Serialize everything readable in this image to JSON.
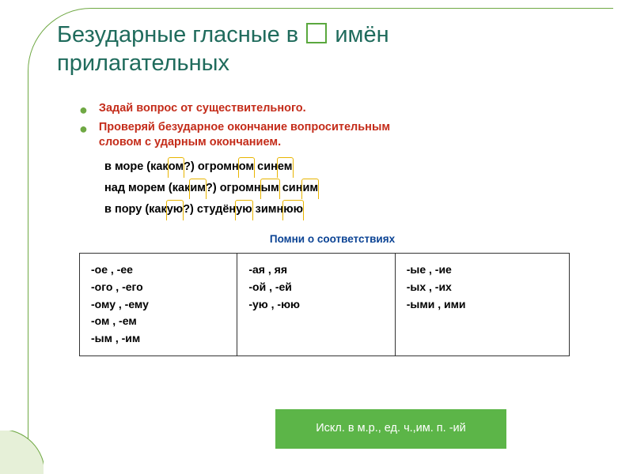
{
  "title": {
    "part1": "Безударные гласные в",
    "part2": "имён",
    "part3": "прилагательных"
  },
  "bullets": [
    {
      "text": "Задай вопрос от существительного.",
      "color": "#c42c1a"
    },
    {
      "text_a": "Проверяй безударное окончание вопросительным",
      "text_b": "словом с ударным окончанием.",
      "color": "#c42c1a"
    }
  ],
  "examples": [
    {
      "pre": "в море (как",
      "h1": "ом",
      "mid1": "?) огромн",
      "h2": "ом",
      "mid2": " син",
      "h3": "ем",
      "post": ""
    },
    {
      "pre": "над морем (как",
      "h1": "им",
      "mid1": "?) огромн",
      "h2": "ым",
      "mid2": " син",
      "h3": "им",
      "post": ""
    },
    {
      "pre": "в пору (как",
      "h1": "ую",
      "mid1": "?) студён",
      "h2": "ую",
      "mid2": " зимн",
      "h3": "юю",
      "post": ""
    }
  ],
  "subheading": "Помни о соответствиях",
  "table": {
    "col1": [
      "-ое ,  -ее",
      "-ого , -его",
      "-ому , -ему",
      "-ом , -ем",
      "-ым , -им"
    ],
    "col2": [
      "-ая , яя",
      "-ой , -ей",
      "-ую , -юю"
    ],
    "col3": [
      "-ые , -ие",
      "-ых , -их",
      "-ыми , ими"
    ]
  },
  "exception": "Искл. в м.р., ед. ч.,им. п. -ий",
  "colors": {
    "frame": "#6fa843",
    "title": "#1f6b5c",
    "red": "#c42c1a",
    "blue": "#0b4394",
    "highlight": "#e8b400",
    "exception_bg": "#5cb548"
  }
}
